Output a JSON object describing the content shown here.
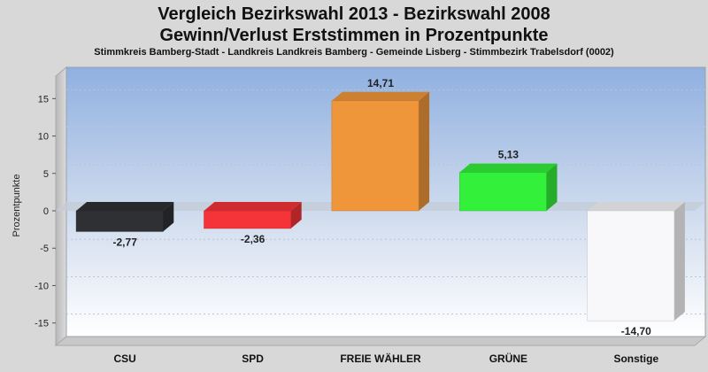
{
  "header": {
    "title_line1": "Vergleich Bezirkswahl 2013 - Bezirkswahl 2008",
    "title_line2": "Gewinn/Verlust Erststimmen in Prozentpunkte",
    "subtitle": "Stimmkreis Bamberg-Stadt - Landkreis Landkreis Bamberg - Gemeinde Lisberg - Stimmbezirk Trabelsdorf (0002)"
  },
  "chart_data": {
    "type": "bar",
    "title": "Vergleich Bezirkswahl 2013 - Bezirkswahl 2008",
    "subtitle": "Gewinn/Verlust Erststimmen in Prozentpunkte",
    "xlabel": "",
    "ylabel": "Prozentpunkte",
    "ylim": [
      -18,
      18
    ],
    "yticks": [
      15,
      10,
      5,
      0,
      -5,
      -10,
      -15
    ],
    "grid": true,
    "categories": [
      "CSU",
      "SPD",
      "FREIE WÄHLER",
      "GRÜNE",
      "Sonstige"
    ],
    "values": [
      -2.77,
      -2.36,
      14.71,
      5.13,
      -14.7
    ],
    "value_labels": [
      "-2,77",
      "-2,36",
      "14,71",
      "5,13",
      "-14,70"
    ],
    "colors": [
      "#2e3034",
      "#f43438",
      "#f0963a",
      "#33f03a",
      "#f8f8fa"
    ]
  }
}
